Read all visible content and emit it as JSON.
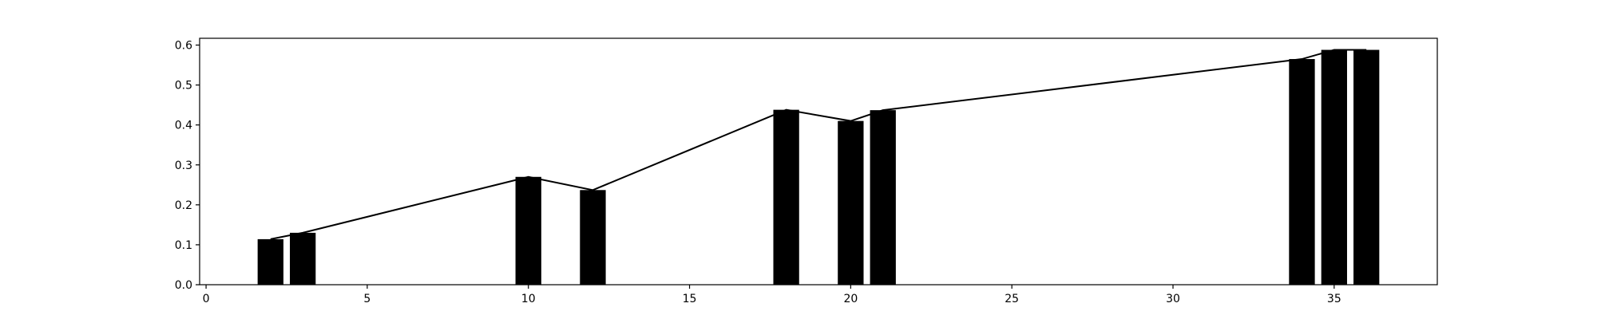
{
  "chart_data": {
    "type": "bar",
    "title": "",
    "xlabel": "",
    "ylabel": "",
    "xlim": [
      -0.2,
      38.2
    ],
    "ylim": [
      0,
      0.617
    ],
    "grid": false,
    "legend": "none",
    "bar_width": 0.8,
    "x_ticks": [
      0,
      5,
      10,
      15,
      20,
      25,
      30,
      35
    ],
    "x_tick_labels": [
      "0",
      "5",
      "10",
      "15",
      "20",
      "25",
      "30",
      "35"
    ],
    "y_ticks": [
      0.0,
      0.1,
      0.2,
      0.3,
      0.4,
      0.5,
      0.6
    ],
    "y_tick_labels": [
      "0.0",
      "0.1",
      "0.2",
      "0.3",
      "0.4",
      "0.5",
      "0.6"
    ],
    "series": [
      {
        "type": "bar",
        "color": "#000000",
        "x": [
          2,
          3,
          10,
          12,
          18,
          20,
          21,
          34,
          35,
          36
        ],
        "values": [
          0.114,
          0.13,
          0.27,
          0.237,
          0.438,
          0.41,
          0.437,
          0.565,
          0.588,
          0.588
        ]
      },
      {
        "type": "line",
        "color": "#000000",
        "x": [
          2,
          3,
          10,
          12,
          18,
          20,
          21,
          34,
          35,
          36
        ],
        "values": [
          0.114,
          0.13,
          0.27,
          0.237,
          0.438,
          0.41,
          0.437,
          0.565,
          0.588,
          0.588
        ]
      }
    ]
  }
}
